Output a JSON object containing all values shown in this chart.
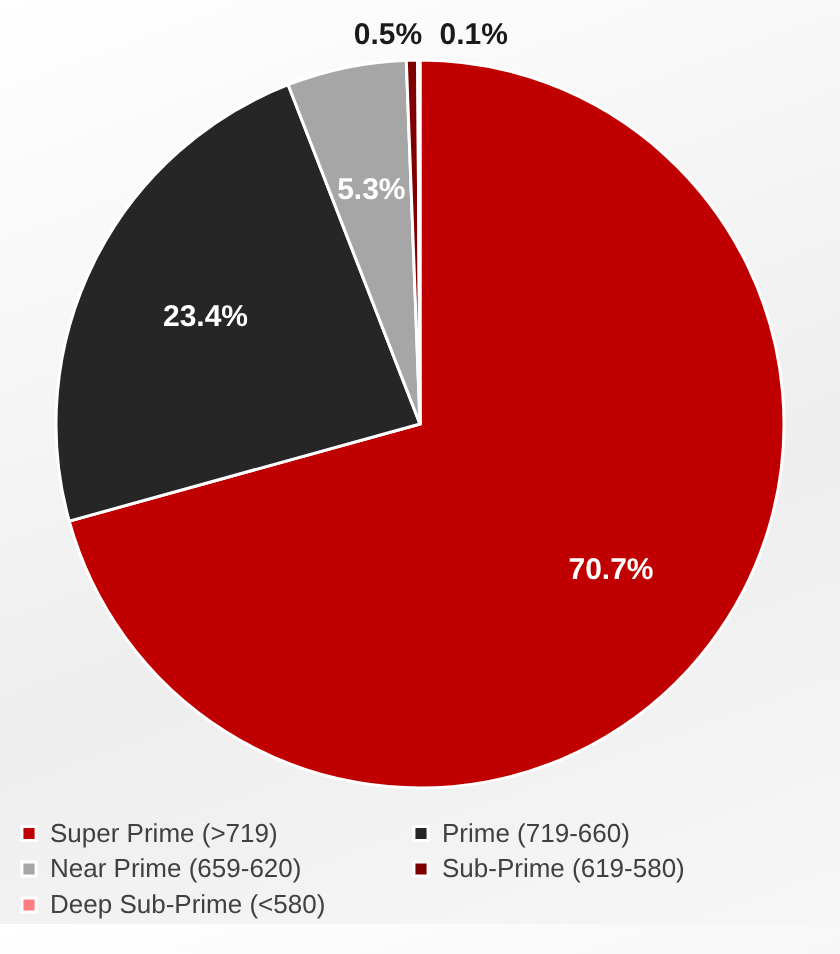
{
  "chart_data": {
    "type": "pie",
    "categories": [
      "Super Prime (>719)",
      "Prime (719-660)",
      "Near Prime (659-620)",
      "Sub-Prime (619-580)",
      "Deep Sub-Prime (<580)"
    ],
    "values": [
      70.7,
      23.4,
      5.3,
      0.5,
      0.1
    ],
    "colors": [
      "#c00000",
      "#262626",
      "#a6a6a6",
      "#7f0000",
      "#ff7c80"
    ],
    "value_labels": [
      "70.7%",
      "23.4%",
      "5.3%",
      "0.5%",
      "0.1%"
    ],
    "legend": "bottom"
  }
}
